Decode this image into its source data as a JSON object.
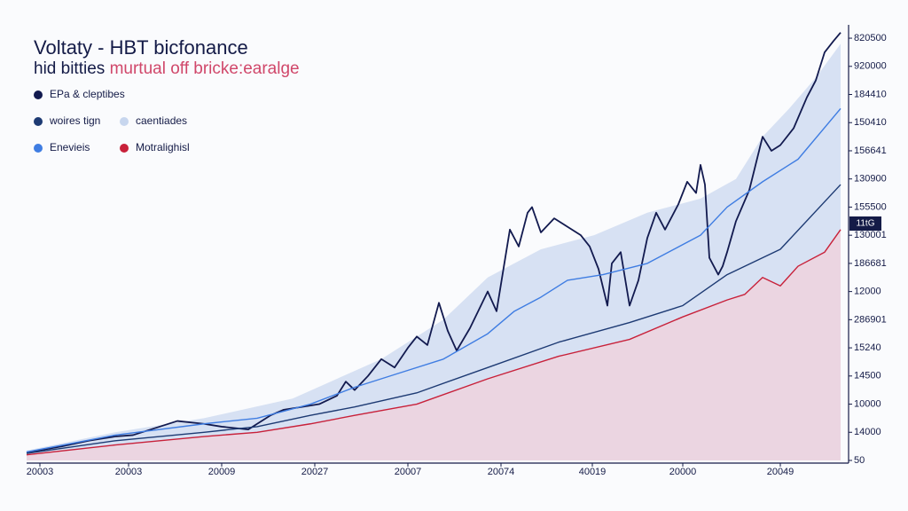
{
  "chart_data": {
    "type": "line",
    "title": "Voltaty ‑ HBT bicfonance",
    "subtitle": [
      "hid bitties",
      "murtual off bricke:earalge"
    ],
    "annotation": "11tG",
    "xlim": [
      0,
      920
    ],
    "xticks": [
      {
        "value": 15,
        "label": "20003"
      },
      {
        "value": 115,
        "label": "20003"
      },
      {
        "value": 220,
        "label": "20009"
      },
      {
        "value": 325,
        "label": "20027"
      },
      {
        "value": 430,
        "label": "20007"
      },
      {
        "value": 535,
        "label": "20074"
      },
      {
        "value": 638,
        "label": "40019"
      },
      {
        "value": 740,
        "label": "20000"
      },
      {
        "value": 850,
        "label": "20049"
      }
    ],
    "ylim": [
      0,
      15.3
    ],
    "yticks": [
      {
        "value": 0,
        "label": "50"
      },
      {
        "value": 1,
        "label": "14000"
      },
      {
        "value": 2,
        "label": "10000"
      },
      {
        "value": 3,
        "label": "14500"
      },
      {
        "value": 4,
        "label": "15240"
      },
      {
        "value": 5,
        "label": "286901"
      },
      {
        "value": 6,
        "label": "12000"
      },
      {
        "value": 7,
        "label": "186681"
      },
      {
        "value": 8,
        "label": "130001"
      },
      {
        "value": 9,
        "label": "155500"
      },
      {
        "value": 10,
        "label": "130900"
      },
      {
        "value": 11,
        "label": "156641"
      },
      {
        "value": 12,
        "label": "150410"
      },
      {
        "value": 13,
        "label": "184410"
      },
      {
        "value": 14,
        "label": "920000"
      },
      {
        "value": 15,
        "label": "820500"
      }
    ],
    "series": [
      {
        "name": "EPa & cleptibes",
        "color": "#121a4f",
        "style": "line",
        "x": [
          0,
          40,
          70,
          100,
          120,
          150,
          170,
          200,
          220,
          250,
          260,
          275,
          290,
          310,
          330,
          350,
          360,
          370,
          385,
          400,
          415,
          430,
          440,
          452,
          465,
          475,
          485,
          500,
          520,
          530,
          545,
          555,
          565,
          570,
          580,
          595,
          610,
          625,
          635,
          645,
          655,
          660,
          670,
          680,
          690,
          700,
          710,
          720,
          735,
          745,
          755,
          760,
          765,
          770,
          780,
          785,
          790,
          800,
          815,
          830,
          840,
          850,
          865,
          880,
          890,
          900,
          910,
          918
        ],
        "values": [
          0.28,
          0.5,
          0.7,
          0.85,
          0.9,
          1.2,
          1.4,
          1.3,
          1.2,
          1.1,
          1.3,
          1.6,
          1.8,
          1.9,
          2.0,
          2.3,
          2.8,
          2.5,
          3.0,
          3.6,
          3.3,
          4.0,
          4.4,
          4.1,
          5.6,
          4.6,
          3.9,
          4.7,
          6.0,
          5.3,
          8.2,
          7.6,
          8.8,
          9.0,
          8.1,
          8.6,
          8.3,
          8.0,
          7.6,
          6.8,
          5.5,
          7.0,
          7.4,
          5.5,
          6.4,
          7.9,
          8.8,
          8.2,
          9.1,
          9.9,
          9.5,
          10.5,
          9.8,
          7.2,
          6.6,
          6.9,
          7.4,
          8.5,
          9.6,
          11.5,
          11.0,
          11.2,
          11.8,
          12.9,
          13.5,
          14.5,
          14.9,
          15.2
        ]
      },
      {
        "name": "woires tign",
        "color": "#1d3a73",
        "style": "line",
        "x": [
          0,
          100,
          200,
          260,
          320,
          370,
          440,
          520,
          600,
          680,
          740,
          790,
          850,
          918
        ],
        "values": [
          0.25,
          0.7,
          1.0,
          1.2,
          1.6,
          1.9,
          2.4,
          3.3,
          4.2,
          4.9,
          5.5,
          6.6,
          7.5,
          9.8
        ]
      },
      {
        "name": "caentiades",
        "color": "#c7d6ee",
        "style": "area",
        "x": [
          0,
          100,
          200,
          300,
          400,
          470,
          520,
          580,
          640,
          700,
          760,
          800,
          830,
          860,
          890,
          918
        ],
        "values": [
          0.35,
          1.0,
          1.5,
          2.2,
          3.6,
          5.0,
          6.5,
          7.5,
          8.0,
          8.8,
          9.3,
          10.0,
          11.5,
          12.5,
          13.6,
          14.8
        ]
      },
      {
        "name": "Enevieis",
        "color": "#3f7de2",
        "style": "line",
        "x": [
          0,
          100,
          200,
          260,
          320,
          370,
          420,
          470,
          520,
          550,
          580,
          610,
          650,
          700,
          730,
          760,
          790,
          830,
          870,
          918
        ],
        "values": [
          0.3,
          0.9,
          1.3,
          1.5,
          2.0,
          2.6,
          3.1,
          3.6,
          4.5,
          5.3,
          5.8,
          6.4,
          6.6,
          7.0,
          7.5,
          8.0,
          9.0,
          9.9,
          10.7,
          12.5
        ]
      },
      {
        "name": "Motralighisl",
        "color": "#c8213a",
        "style": "line",
        "area_color": "#f3d0d8",
        "x": [
          0,
          100,
          200,
          260,
          320,
          370,
          440,
          520,
          600,
          680,
          740,
          790,
          810,
          830,
          850,
          870,
          900,
          918
        ],
        "values": [
          0.2,
          0.55,
          0.85,
          1.0,
          1.3,
          1.6,
          2.0,
          2.9,
          3.7,
          4.3,
          5.1,
          5.7,
          5.9,
          6.5,
          6.2,
          6.9,
          7.4,
          8.2
        ]
      }
    ]
  }
}
